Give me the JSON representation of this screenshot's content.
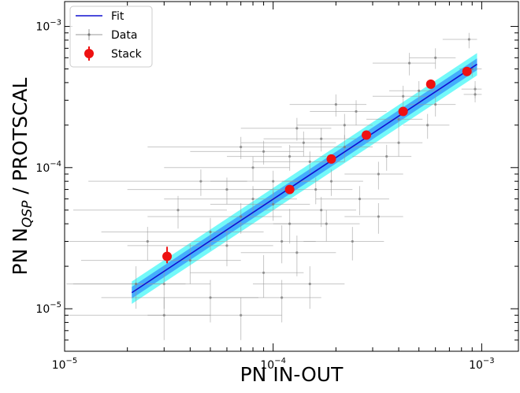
{
  "chart_data": {
    "type": "scatter",
    "title": "",
    "xlabel": "PN IN-OUT",
    "ylabel": {
      "prefix": "PN N",
      "subscript": "QSP",
      "suffix": " / PROTSCAL"
    },
    "xscale": "log",
    "yscale": "log",
    "xlim": [
      1e-05,
      0.0015
    ],
    "ylim": [
      5e-06,
      0.0015
    ],
    "x_ticks": [
      {
        "value": 1e-05,
        "base": "10",
        "exp": "−5"
      },
      {
        "value": 0.0001,
        "base": "10",
        "exp": "−4"
      },
      {
        "value": 0.001,
        "base": "10",
        "exp": "−3"
      }
    ],
    "y_ticks": [
      {
        "value": 1e-05,
        "base": "10",
        "exp": "−5"
      },
      {
        "value": 0.0001,
        "base": "10",
        "exp": "−4"
      },
      {
        "value": 0.001,
        "base": "10",
        "exp": "−3"
      }
    ],
    "grid": false,
    "legend": {
      "placement": "top-left",
      "entries": [
        {
          "label": "Fit",
          "marker": "line",
          "color": "#1010d0"
        },
        {
          "label": "Data",
          "marker": "errorbar",
          "color": "#999999"
        },
        {
          "label": "Stack",
          "marker": "circle-errorbar",
          "color": "#ee1111"
        }
      ]
    },
    "fit": {
      "x_range": [
        2.1e-05,
        0.00095
      ],
      "y_start": 1.3e-05,
      "y_end": 0.00054,
      "band_inner_factor": 1.1,
      "band_outer_factor": 1.2,
      "colors": {
        "line": "#1010d0",
        "inner_band": "#1e6fff",
        "outer_band": "#00f4f4"
      }
    },
    "series": [
      {
        "name": "Stack",
        "color": "#ee1111",
        "points": [
          {
            "x": 3.1e-05,
            "y": 2.35e-05,
            "yerr_low": 2.1e-05,
            "yerr_high": 2.75e-05
          },
          {
            "x": 0.00012,
            "y": 7e-05,
            "yerr_low": 6.6e-05,
            "yerr_high": 7.5e-05
          },
          {
            "x": 0.00019,
            "y": 0.000115,
            "yerr_low": 0.00011,
            "yerr_high": 0.00012
          },
          {
            "x": 0.00028,
            "y": 0.00017,
            "yerr_low": 0.000163,
            "yerr_high": 0.000178
          },
          {
            "x": 0.00042,
            "y": 0.00025,
            "yerr_low": 0.00024,
            "yerr_high": 0.00026
          },
          {
            "x": 0.00057,
            "y": 0.00039,
            "yerr_low": 0.000375,
            "yerr_high": 0.000405
          },
          {
            "x": 0.00085,
            "y": 0.00048,
            "yerr_low": 0.00046,
            "yerr_high": 0.0005
          }
        ]
      },
      {
        "name": "Data",
        "color": "#999999",
        "points_estimated": true,
        "points": [
          {
            "x": 0.00087,
            "y": 0.00081,
            "x_lo": 0.00065,
            "x_hi": 0.00095,
            "y_lo": 0.0007,
            "y_hi": 0.0009
          },
          {
            "x": 0.00093,
            "y": 0.00036,
            "x_lo": 0.0008,
            "x_hi": 0.001,
            "y_lo": 0.00031,
            "y_hi": 0.00041
          },
          {
            "x": 0.00093,
            "y": 0.00033,
            "x_lo": 0.00082,
            "x_hi": 0.001,
            "y_lo": 0.00029,
            "y_hi": 0.00038
          },
          {
            "x": 0.0009,
            "y": 0.0005,
            "x_lo": 0.00078,
            "x_hi": 0.001,
            "y_lo": 0.00044,
            "y_hi": 0.00056
          },
          {
            "x": 0.0006,
            "y": 0.0006,
            "x_lo": 0.00045,
            "x_hi": 0.00075,
            "y_lo": 0.0005,
            "y_hi": 0.0007
          },
          {
            "x": 0.00045,
            "y": 0.00055,
            "x_lo": 0.0003,
            "x_hi": 0.0006,
            "y_lo": 0.00045,
            "y_hi": 0.00065
          },
          {
            "x": 0.0006,
            "y": 0.00028,
            "x_lo": 0.00045,
            "x_hi": 0.00075,
            "y_lo": 0.00023,
            "y_hi": 0.00033
          },
          {
            "x": 0.00055,
            "y": 0.0002,
            "x_lo": 0.00042,
            "x_hi": 0.0007,
            "y_lo": 0.00016,
            "y_hi": 0.00024
          },
          {
            "x": 0.00042,
            "y": 0.00032,
            "x_lo": 0.0003,
            "x_hi": 0.00055,
            "y_lo": 0.00026,
            "y_hi": 0.00038
          },
          {
            "x": 0.0004,
            "y": 0.00022,
            "x_lo": 0.00028,
            "x_hi": 0.00052,
            "y_lo": 0.00018,
            "y_hi": 0.00026
          },
          {
            "x": 0.0004,
            "y": 0.00015,
            "x_lo": 0.00028,
            "x_hi": 0.00052,
            "y_lo": 0.00012,
            "y_hi": 0.00018
          },
          {
            "x": 0.00032,
            "y": 9e-05,
            "x_lo": 0.00022,
            "x_hi": 0.00042,
            "y_lo": 7e-05,
            "y_hi": 0.00011
          },
          {
            "x": 0.00025,
            "y": 0.00025,
            "x_lo": 0.00015,
            "x_hi": 0.00035,
            "y_lo": 0.0002,
            "y_hi": 0.0003
          },
          {
            "x": 0.00022,
            "y": 0.00014,
            "x_lo": 0.00012,
            "x_hi": 0.0003,
            "y_lo": 0.00011,
            "y_hi": 0.00017
          },
          {
            "x": 0.00017,
            "y": 0.00016,
            "x_lo": 9e-05,
            "x_hi": 0.00025,
            "y_lo": 0.00013,
            "y_hi": 0.00019
          },
          {
            "x": 0.00016,
            "y": 7e-05,
            "x_lo": 8e-05,
            "x_hi": 0.00024,
            "y_lo": 5.5e-05,
            "y_hi": 8.5e-05
          },
          {
            "x": 0.00012,
            "y": 0.00012,
            "x_lo": 6e-05,
            "x_hi": 0.00018,
            "y_lo": 9.5e-05,
            "y_hi": 0.000145
          },
          {
            "x": 0.0001,
            "y": 8e-05,
            "x_lo": 5e-05,
            "x_hi": 0.00015,
            "y_lo": 6.5e-05,
            "y_hi": 9.5e-05
          },
          {
            "x": 0.0001,
            "y": 5.5e-05,
            "x_lo": 5e-05,
            "x_hi": 0.00015,
            "y_lo": 4.2e-05,
            "y_hi": 6.8e-05
          },
          {
            "x": 8e-05,
            "y": 0.0001,
            "x_lo": 3e-05,
            "x_hi": 0.00012,
            "y_lo": 8e-05,
            "y_hi": 0.00012
          },
          {
            "x": 7e-05,
            "y": 4.5e-05,
            "x_lo": 2.5e-05,
            "x_hi": 0.00011,
            "y_lo": 3.4e-05,
            "y_hi": 5.6e-05
          },
          {
            "x": 6e-05,
            "y": 7e-05,
            "x_lo": 2e-05,
            "x_hi": 0.0001,
            "y_lo": 5.5e-05,
            "y_hi": 8.5e-05
          },
          {
            "x": 5e-05,
            "y": 3.5e-05,
            "x_lo": 1.5e-05,
            "x_hi": 9e-05,
            "y_lo": 2.6e-05,
            "y_hi": 4.4e-05
          },
          {
            "x": 0.00011,
            "y": 3e-05,
            "x_lo": 5e-05,
            "x_hi": 0.00016,
            "y_lo": 2.1e-05,
            "y_hi": 3.9e-05
          },
          {
            "x": 0.00013,
            "y": 2.5e-05,
            "x_lo": 7e-05,
            "x_hi": 0.0002,
            "y_lo": 1.7e-05,
            "y_hi": 3.3e-05
          },
          {
            "x": 0.00018,
            "y": 4e-05,
            "x_lo": 0.0001,
            "x_hi": 0.00026,
            "y_lo": 3e-05,
            "y_hi": 5e-05
          },
          {
            "x": 9e-05,
            "y": 1.8e-05,
            "x_lo": 4e-05,
            "x_hi": 0.00014,
            "y_lo": 1.2e-05,
            "y_hi": 2.4e-05
          },
          {
            "x": 4e-05,
            "y": 2.2e-05,
            "x_lo": 1.2e-05,
            "x_hi": 7e-05,
            "y_lo": 1.5e-05,
            "y_hi": 2.9e-05
          },
          {
            "x": 3.5e-05,
            "y": 5e-05,
            "x_lo": 1.1e-05,
            "x_hi": 6e-05,
            "y_lo": 3.7e-05,
            "y_hi": 6.3e-05
          },
          {
            "x": 3e-05,
            "y": 1.5e-05,
            "x_lo": 1.1e-05,
            "x_hi": 5e-05,
            "y_lo": 1e-05,
            "y_hi": 2e-05
          },
          {
            "x": 2.5e-05,
            "y": 3e-05,
            "x_lo": 1.05e-05,
            "x_hi": 4.5e-05,
            "y_lo": 2.2e-05,
            "y_hi": 3.8e-05
          },
          {
            "x": 0.00014,
            "y": 0.00015,
            "x_lo": 7e-05,
            "x_hi": 0.0002,
            "y_lo": 0.00012,
            "y_hi": 0.00018
          },
          {
            "x": 0.00026,
            "y": 6e-05,
            "x_lo": 0.00016,
            "x_hi": 0.00036,
            "y_lo": 4.6e-05,
            "y_hi": 7.4e-05
          },
          {
            "x": 0.00032,
            "y": 4.5e-05,
            "x_lo": 0.00022,
            "x_hi": 0.00042,
            "y_lo": 3.4e-05,
            "y_hi": 5.6e-05
          },
          {
            "x": 0.00022,
            "y": 0.0002,
            "x_lo": 0.00013,
            "x_hi": 0.0003,
            "y_lo": 0.00016,
            "y_hi": 0.00024
          },
          {
            "x": 0.00015,
            "y": 0.00011,
            "x_lo": 8e-05,
            "x_hi": 0.00022,
            "y_lo": 9e-05,
            "y_hi": 0.00013
          },
          {
            "x": 8e-05,
            "y": 6e-05,
            "x_lo": 3e-05,
            "x_hi": 0.00013,
            "y_lo": 4.6e-05,
            "y_hi": 7.4e-05
          },
          {
            "x": 6e-05,
            "y": 2.8e-05,
            "x_lo": 2e-05,
            "x_hi": 0.0001,
            "y_lo": 2e-05,
            "y_hi": 3.6e-05
          },
          {
            "x": 0.00012,
            "y": 4e-05,
            "x_lo": 6e-05,
            "x_hi": 0.00018,
            "y_lo": 2.9e-05,
            "y_hi": 5.1e-05
          },
          {
            "x": 0.00019,
            "y": 8e-05,
            "x_lo": 0.00011,
            "x_hi": 0.00027,
            "y_lo": 6.3e-05,
            "y_hi": 9.7e-05
          },
          {
            "x": 0.00011,
            "y": 1.2e-05,
            "x_lo": 5e-05,
            "x_hi": 0.00017,
            "y_lo": 8e-06,
            "y_hi": 1.6e-05
          },
          {
            "x": 7e-05,
            "y": 9e-06,
            "x_lo": 2.5e-05,
            "x_hi": 0.00011,
            "y_lo": 6e-06,
            "y_hi": 1.2e-05
          },
          {
            "x": 0.00015,
            "y": 1.5e-05,
            "x_lo": 8e-05,
            "x_hi": 0.00022,
            "y_lo": 1e-05,
            "y_hi": 2e-05
          },
          {
            "x": 5e-05,
            "y": 1.2e-05,
            "x_lo": 1.5e-05,
            "x_hi": 8.5e-05,
            "y_lo": 8e-06,
            "y_hi": 1.6e-05
          },
          {
            "x": 4.5e-05,
            "y": 8e-05,
            "x_lo": 1.3e-05,
            "x_hi": 7.5e-05,
            "y_lo": 6.3e-05,
            "y_hi": 9.7e-05
          },
          {
            "x": 9e-05,
            "y": 0.00013,
            "x_lo": 4e-05,
            "x_hi": 0.00014,
            "y_lo": 0.000105,
            "y_hi": 0.000155
          },
          {
            "x": 0.00035,
            "y": 0.00012,
            "x_lo": 0.00024,
            "x_hi": 0.00046,
            "y_lo": 9.5e-05,
            "y_hi": 0.000145
          },
          {
            "x": 0.0005,
            "y": 0.00035,
            "x_lo": 0.00036,
            "x_hi": 0.00064,
            "y_lo": 0.00029,
            "y_hi": 0.00041
          },
          {
            "x": 2.2e-05,
            "y": 1.5e-05,
            "x_lo": 1.02e-05,
            "x_hi": 3.8e-05,
            "y_lo": 1e-05,
            "y_hi": 2e-05
          },
          {
            "x": 3e-05,
            "y": 9e-06,
            "x_lo": 1.05e-05,
            "x_hi": 5e-05,
            "y_lo": 6e-06,
            "y_hi": 1.2e-05
          },
          {
            "x": 0.0002,
            "y": 0.00028,
            "x_lo": 0.00012,
            "x_hi": 0.00028,
            "y_lo": 0.00023,
            "y_hi": 0.00033
          },
          {
            "x": 0.00013,
            "y": 0.00019,
            "x_lo": 7e-05,
            "x_hi": 0.00019,
            "y_lo": 0.000155,
            "y_hi": 0.000225
          },
          {
            "x": 7e-05,
            "y": 0.00014,
            "x_lo": 2.5e-05,
            "x_hi": 0.00011,
            "y_lo": 0.000115,
            "y_hi": 0.000165
          },
          {
            "x": 0.00024,
            "y": 3e-05,
            "x_lo": 0.00014,
            "x_hi": 0.00034,
            "y_lo": 2.2e-05,
            "y_hi": 3.8e-05
          },
          {
            "x": 0.00017,
            "y": 5e-05,
            "x_lo": 9e-05,
            "x_hi": 0.00025,
            "y_lo": 3.8e-05,
            "y_hi": 6.2e-05
          }
        ]
      }
    ]
  }
}
